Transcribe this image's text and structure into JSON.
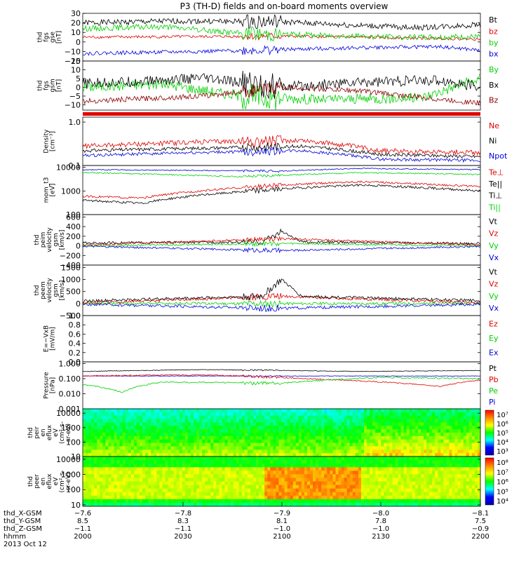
{
  "title": "P3 (TH-D) fields and on-board moments overview",
  "colors": {
    "black": "#000000",
    "red": "#e00000",
    "green": "#00d000",
    "blue": "#0000dd",
    "darkred": "#8b0000"
  },
  "chart_data": [
    {
      "type": "line",
      "ylabel": [
        "thd",
        "fgs",
        "gse",
        "[nT]"
      ],
      "ylim": [
        -20,
        30
      ],
      "ticks": [
        "30",
        "20",
        "10",
        "0",
        "−10",
        "−20"
      ],
      "tickvals": [
        30,
        20,
        10,
        0,
        -10,
        -20
      ],
      "legend": [
        {
          "label": "Bt",
          "color": "black"
        },
        {
          "label": "bz",
          "color": "red"
        },
        {
          "label": "by",
          "color": "green"
        },
        {
          "label": "bx",
          "color": "blue"
        }
      ],
      "series": [
        {
          "color": "black",
          "base": 20,
          "amp": 3,
          "points": [
            [
              0,
              20
            ],
            [
              0.25,
              22
            ],
            [
              0.5,
              21
            ],
            [
              0.7,
              17
            ],
            [
              0.85,
              15
            ],
            [
              1,
              18
            ]
          ]
        },
        {
          "color": "red",
          "base": 5,
          "amp": 1.5,
          "points": [
            [
              0,
              5
            ],
            [
              0.5,
              6
            ],
            [
              0.7,
              5
            ],
            [
              1,
              3
            ]
          ]
        },
        {
          "color": "green",
          "base": 10,
          "amp": 3,
          "points": [
            [
              0,
              14
            ],
            [
              0.2,
              16
            ],
            [
              0.4,
              9
            ],
            [
              0.6,
              7
            ],
            [
              0.8,
              5
            ],
            [
              1,
              5
            ]
          ]
        },
        {
          "color": "blue",
          "base": -10,
          "amp": 2,
          "points": [
            [
              0,
              -12
            ],
            [
              0.3,
              -10
            ],
            [
              0.5,
              -8
            ],
            [
              0.7,
              -6
            ],
            [
              0.9,
              -5
            ],
            [
              1,
              -9
            ]
          ]
        }
      ]
    },
    {
      "type": "line",
      "ylabel": [
        "thd",
        "fgs",
        "gsm",
        "[nT]"
      ],
      "ylim": [
        -13,
        15
      ],
      "ticks": [
        "15",
        "10",
        "5",
        "0",
        "−5",
        "−10"
      ],
      "tickvals": [
        15,
        10,
        5,
        0,
        -5,
        -10
      ],
      "legend": [
        {
          "label": "By",
          "color": "green"
        },
        {
          "label": "Bx",
          "color": "black"
        },
        {
          "label": "Bz",
          "color": "darkred"
        }
      ],
      "series": [
        {
          "color": "green",
          "base": 0,
          "amp": 3,
          "points": [
            [
              0,
              0
            ],
            [
              0.2,
              2
            ],
            [
              0.4,
              -5
            ],
            [
              0.6,
              -7
            ],
            [
              0.85,
              -6
            ],
            [
              1,
              5
            ]
          ]
        },
        {
          "color": "black",
          "base": 0,
          "amp": 3,
          "points": [
            [
              0,
              2
            ],
            [
              0.3,
              5
            ],
            [
              0.5,
              0
            ],
            [
              0.7,
              3
            ],
            [
              0.9,
              4
            ],
            [
              1,
              0
            ]
          ]
        },
        {
          "color": "darkred",
          "base": -8,
          "amp": 1.5,
          "points": [
            [
              0,
              -8
            ],
            [
              0.3,
              -5
            ],
            [
              0.5,
              0
            ],
            [
              0.7,
              -2
            ],
            [
              0.9,
              -7
            ],
            [
              1,
              -9
            ]
          ]
        }
      ]
    },
    {
      "type": "line",
      "ylabel": [
        "Density",
        "[cm⁻³]"
      ],
      "log": true,
      "ylim": [
        0.1,
        1.3
      ],
      "ticks": [
        "1.0",
        "0.1"
      ],
      "tickvals": [
        1.0,
        0.1
      ],
      "legend": [
        {
          "label": "Ne",
          "color": "red"
        },
        {
          "label": "Ni",
          "color": "black"
        },
        {
          "label": "Npot",
          "color": "blue"
        }
      ],
      "series": [
        {
          "color": "red",
          "base": 0.3,
          "amp": 0.08,
          "points": [
            [
              0,
              0.28
            ],
            [
              0.3,
              0.35
            ],
            [
              0.55,
              0.38
            ],
            [
              0.75,
              0.22
            ],
            [
              1,
              0.2
            ]
          ]
        },
        {
          "color": "black",
          "base": 0.22,
          "amp": 0.04,
          "points": [
            [
              0,
              0.22
            ],
            [
              0.3,
              0.25
            ],
            [
              0.55,
              0.28
            ],
            [
              0.75,
              0.18
            ],
            [
              1,
              0.16
            ]
          ]
        },
        {
          "color": "blue",
          "base": 0.18,
          "amp": 0.03,
          "points": [
            [
              0,
              0.17
            ],
            [
              0.3,
              0.2
            ],
            [
              0.55,
              0.22
            ],
            [
              0.75,
              0.14
            ],
            [
              1,
              0.13
            ]
          ]
        }
      ]
    },
    {
      "type": "line",
      "ylabel": [
        "mom_t3",
        "[eV]"
      ],
      "log": true,
      "ylim": [
        100,
        12000
      ],
      "ticks": [
        "10000",
        "1000",
        "100"
      ],
      "tickvals": [
        10000,
        1000,
        100
      ],
      "legend": [
        {
          "label": "Te⊥",
          "color": "red"
        },
        {
          "label": "Te||",
          "color": "black"
        },
        {
          "label": "Ti⊥",
          "color": "black"
        },
        {
          "label": "Ti||",
          "color": "green"
        }
      ],
      "series": [
        {
          "color": "blue",
          "base": 8000,
          "amp": 800,
          "points": [
            [
              0,
              8000
            ],
            [
              0.5,
              7000
            ],
            [
              0.7,
              9000
            ],
            [
              1,
              8000
            ]
          ]
        },
        {
          "color": "green",
          "base": 5000,
          "amp": 600,
          "points": [
            [
              0,
              6000
            ],
            [
              0.4,
              4000
            ],
            [
              0.7,
              6000
            ],
            [
              1,
              5000
            ]
          ]
        },
        {
          "color": "red",
          "base": 1500,
          "amp": 300,
          "points": [
            [
              0,
              600
            ],
            [
              0.15,
              500
            ],
            [
              0.35,
              1200
            ],
            [
              0.7,
              2500
            ],
            [
              1,
              1500
            ]
          ]
        },
        {
          "color": "black",
          "base": 900,
          "amp": 200,
          "points": [
            [
              0,
              400
            ],
            [
              0.15,
              300
            ],
            [
              0.35,
              800
            ],
            [
              0.7,
              1800
            ],
            [
              1,
              1000
            ]
          ]
        }
      ]
    },
    {
      "type": "line",
      "ylabel": [
        "thd",
        "peim",
        "velocity",
        "gsm",
        "[km/s]"
      ],
      "ylim": [
        -400,
        650
      ],
      "ticks": [
        "600",
        "400",
        "200",
        "0",
        "−200",
        "−400"
      ],
      "tickvals": [
        600,
        400,
        200,
        0,
        -200,
        -400
      ],
      "legend": [
        {
          "label": "Vt",
          "color": "black"
        },
        {
          "label": "Vz",
          "color": "red"
        },
        {
          "label": "Vy",
          "color": "green"
        },
        {
          "label": "Vx",
          "color": "blue"
        }
      ],
      "series": [
        {
          "color": "black",
          "base": 60,
          "amp": 25,
          "points": [
            [
              0,
              60
            ],
            [
              0.45,
              80
            ],
            [
              0.5,
              300
            ],
            [
              0.55,
              80
            ],
            [
              1,
              50
            ]
          ]
        },
        {
          "color": "red",
          "base": 20,
          "amp": 20,
          "points": [
            [
              0,
              20
            ],
            [
              0.5,
              150
            ],
            [
              1,
              20
            ]
          ]
        },
        {
          "color": "green",
          "base": 0,
          "amp": 20,
          "points": [
            [
              0,
              0
            ],
            [
              0.5,
              50
            ],
            [
              1,
              0
            ]
          ]
        },
        {
          "color": "blue",
          "base": -10,
          "amp": 20,
          "points": [
            [
              0,
              -10
            ],
            [
              0.5,
              -100
            ],
            [
              1,
              -10
            ]
          ]
        }
      ]
    },
    {
      "type": "line",
      "ylabel": [
        "thd",
        "peem",
        "velocity",
        "gsm",
        "[km/s]"
      ],
      "ylim": [
        -500,
        1600
      ],
      "ticks": [
        "1500",
        "1000",
        "500",
        "0",
        "−500"
      ],
      "tickvals": [
        1500,
        1000,
        500,
        0,
        -500
      ],
      "legend": [
        {
          "label": "Vt",
          "color": "black"
        },
        {
          "label": "Vz",
          "color": "red"
        },
        {
          "label": "Vy",
          "color": "green"
        },
        {
          "label": "Vx",
          "color": "blue"
        }
      ],
      "series": [
        {
          "color": "green",
          "base": 0,
          "amp": 60,
          "points": [
            [
              0,
              0
            ],
            [
              1,
              0
            ]
          ]
        },
        {
          "color": "blue",
          "base": -30,
          "amp": 60,
          "points": [
            [
              0,
              -30
            ],
            [
              0.5,
              -200
            ],
            [
              1,
              -30
            ]
          ]
        },
        {
          "color": "red",
          "base": 30,
          "amp": 60,
          "points": [
            [
              0,
              30
            ],
            [
              0.5,
              300
            ],
            [
              1,
              30
            ]
          ]
        },
        {
          "color": "black",
          "base": 100,
          "amp": 60,
          "points": [
            [
              0,
              100
            ],
            [
              0.2,
              200
            ],
            [
              0.45,
              300
            ],
            [
              0.5,
              1000
            ],
            [
              0.55,
              300
            ],
            [
              1,
              120
            ]
          ]
        }
      ]
    },
    {
      "type": "line",
      "ylabel": [
        "E=−VxB",
        "[mV/m]"
      ],
      "ylim": [
        0,
        1.0
      ],
      "ticks": [
        "1.0",
        "0.8",
        "0.6",
        "0.4",
        "0.2",
        "0.0"
      ],
      "tickvals": [
        1.0,
        0.8,
        0.6,
        0.4,
        0.2,
        0.0
      ],
      "legend": [
        {
          "label": "Ez",
          "color": "red"
        },
        {
          "label": "Ey",
          "color": "green"
        },
        {
          "label": "Ex",
          "color": "blue"
        }
      ],
      "series": []
    },
    {
      "type": "line",
      "ylabel": [
        "Pressure",
        "[nPa]"
      ],
      "log": true,
      "ylim": [
        0.001,
        1.3
      ],
      "ticks": [
        "1.000",
        "0.100",
        "0.010",
        "0.001"
      ],
      "tickvals": [
        1.0,
        0.1,
        0.01,
        0.001
      ],
      "legend": [
        {
          "label": "Pt",
          "color": "black"
        },
        {
          "label": "Pb",
          "color": "red"
        },
        {
          "label": "Pe",
          "color": "green"
        },
        {
          "label": "Pi",
          "color": "blue"
        }
      ],
      "series": [
        {
          "color": "black",
          "base": 0.35,
          "amp": 0.03,
          "points": [
            [
              0,
              0.3
            ],
            [
              0.3,
              0.4
            ],
            [
              0.7,
              0.3
            ],
            [
              1,
              0.35
            ]
          ]
        },
        {
          "color": "blue",
          "base": 0.15,
          "amp": 0.01,
          "points": [
            [
              0,
              0.15
            ],
            [
              1,
              0.15
            ]
          ]
        },
        {
          "color": "red",
          "base": 0.12,
          "amp": 0.02,
          "points": [
            [
              0,
              0.15
            ],
            [
              0.3,
              0.18
            ],
            [
              0.6,
              0.09
            ],
            [
              0.9,
              0.03
            ],
            [
              1,
              0.08
            ]
          ]
        },
        {
          "color": "green",
          "base": 0.05,
          "amp": 0.01,
          "points": [
            [
              0,
              0.04
            ],
            [
              0.1,
              0.012
            ],
            [
              0.2,
              0.06
            ],
            [
              0.5,
              0.05
            ],
            [
              0.75,
              0.12
            ],
            [
              1,
              0.1
            ]
          ]
        }
      ]
    },
    {
      "type": "heatmap",
      "ylabel": [
        "thd",
        "peir",
        "en",
        "eflux",
        "eV",
        "(cm²-s-",
        "sr-eV)"
      ],
      "log": true,
      "ylim": [
        10,
        20000
      ],
      "ticks": [
        "10000",
        "1000",
        "100",
        "10"
      ],
      "tickvals": [
        10000,
        1000,
        100,
        10
      ],
      "colorbar": [
        "10⁷",
        "10⁶",
        "10⁵",
        "10⁴",
        "10³"
      ]
    },
    {
      "type": "heatmap",
      "ylabel": [
        "thd",
        "peer",
        "en",
        "eflux",
        "eV",
        "(cm²-s-",
        "sr-eV)"
      ],
      "log": true,
      "ylim": [
        8,
        15000
      ],
      "ticks": [
        "10000",
        "1000",
        "100",
        "10"
      ],
      "tickvals": [
        10000,
        1000,
        100,
        10
      ],
      "colorbar": [
        "10⁸",
        "10⁷",
        "10⁶",
        "10⁵",
        "10⁴"
      ]
    }
  ],
  "xaxis": {
    "row_labels": [
      "thd_X-GSM",
      "thd_Y-GSM",
      "thd_Z-GSM",
      "hhmm"
    ],
    "date": "2013 Oct 12",
    "columns": [
      {
        "values": [
          "−7.6",
          "8.5",
          "−1.1",
          "2000"
        ]
      },
      {
        "values": [
          "−7.8",
          "8.3",
          "−1.1",
          "2030"
        ]
      },
      {
        "values": [
          "−7.9",
          "8.1",
          "−1.0",
          "2100"
        ]
      },
      {
        "values": [
          "−8.0",
          "7.8",
          "−1.0",
          "2130"
        ]
      },
      {
        "values": [
          "−8.1",
          "7.5",
          "−0.9",
          "2200"
        ]
      }
    ]
  }
}
